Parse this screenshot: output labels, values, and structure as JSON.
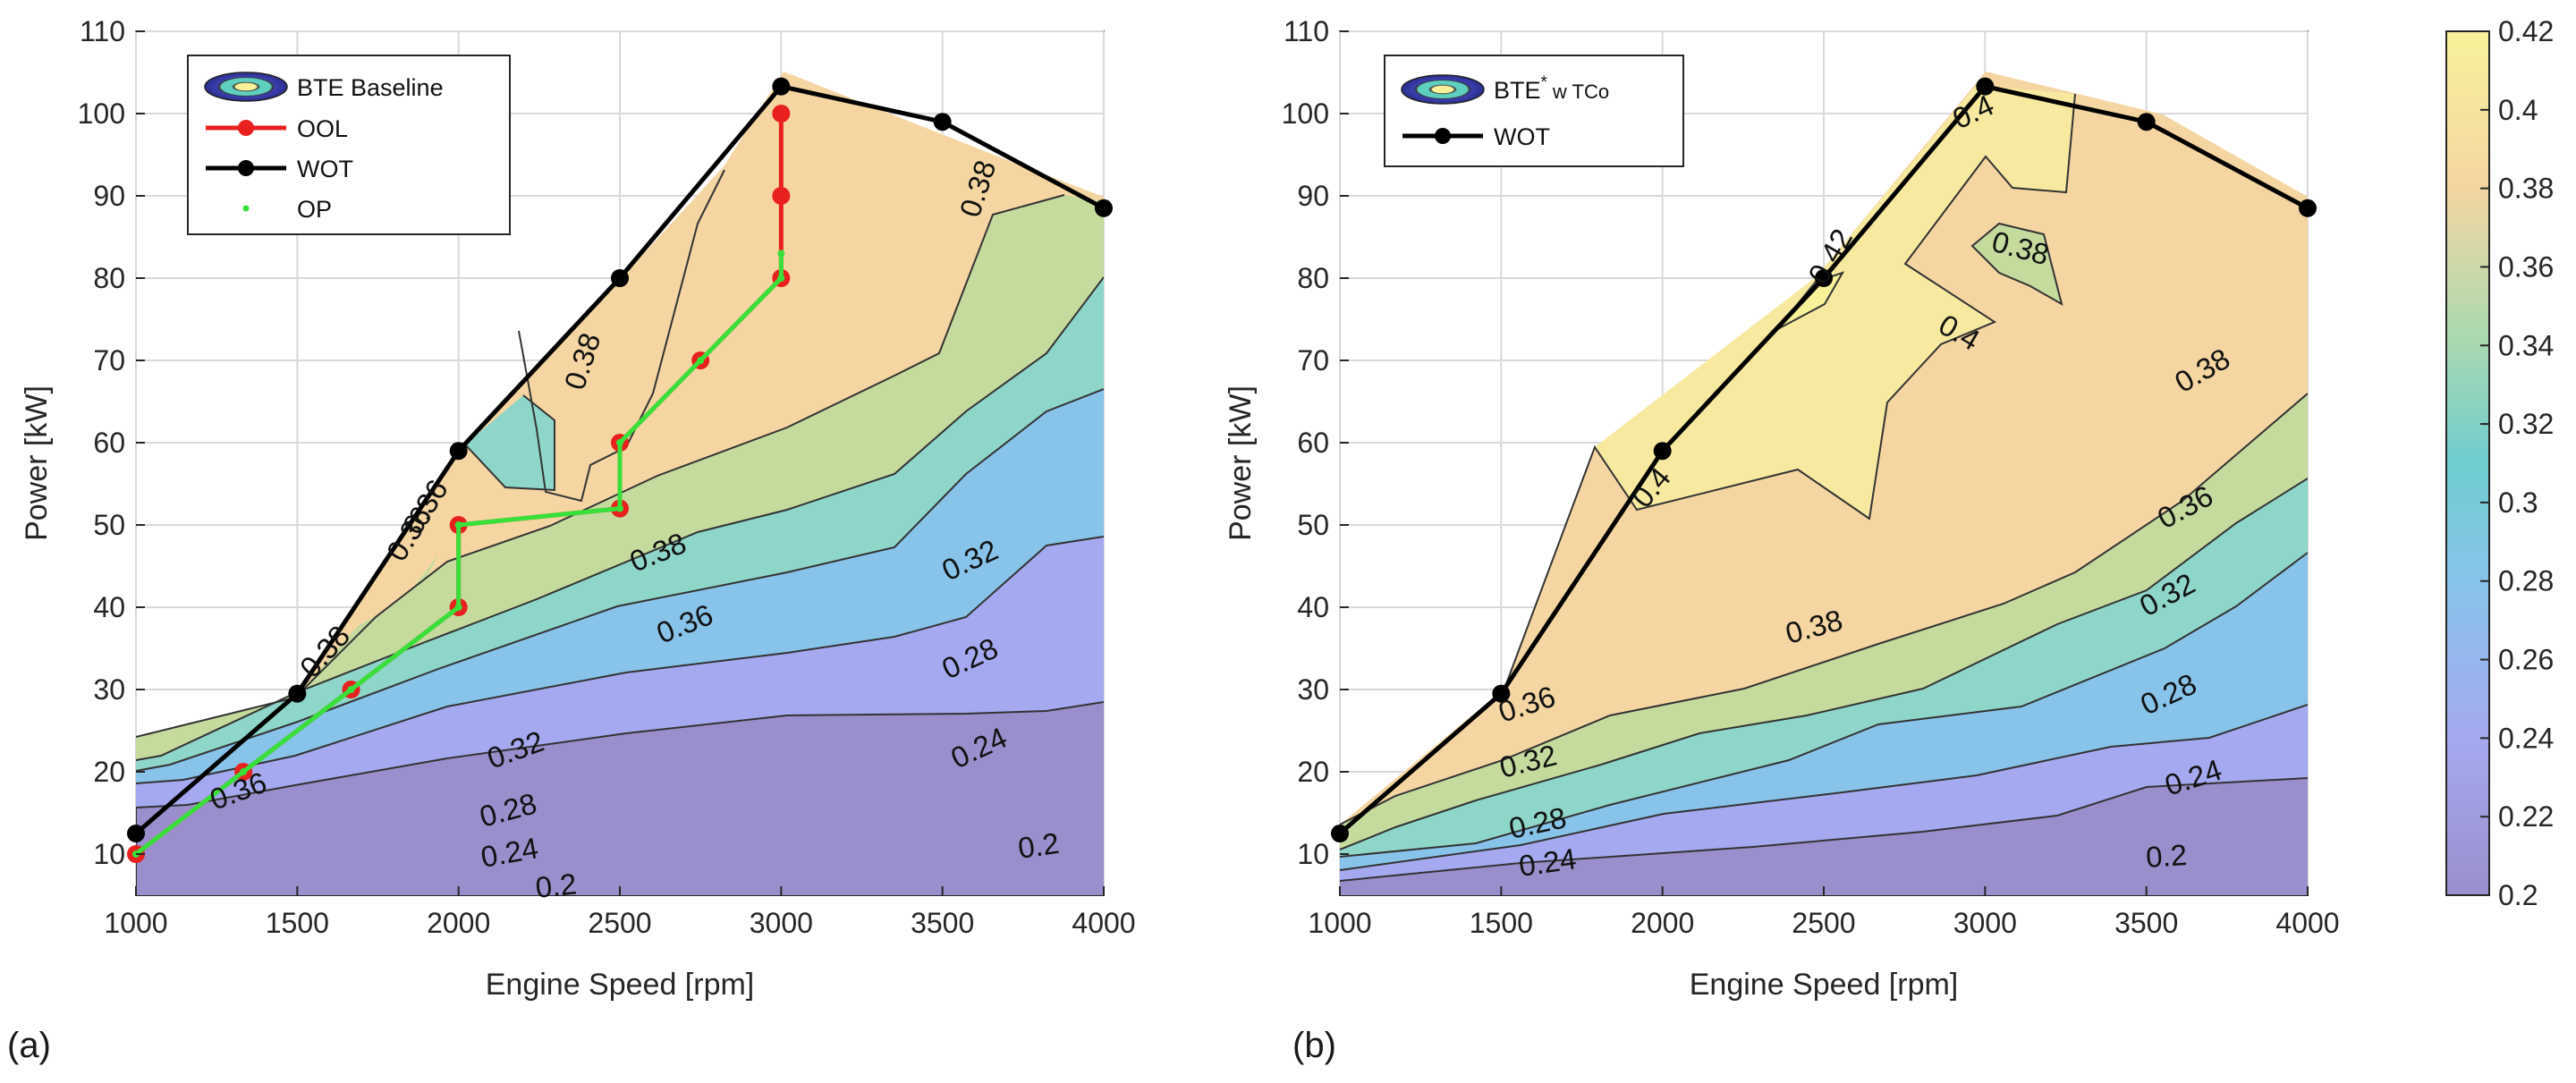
{
  "chart_data": [
    {
      "type": "contour",
      "panel": "(a)",
      "xlabel": "Engine Speed [rpm]",
      "ylabel": "Power [kW]",
      "xlim": [
        1000,
        4000
      ],
      "ylim": [
        5,
        110
      ],
      "xticks": [
        1000,
        1500,
        2000,
        2500,
        3000,
        3500,
        4000
      ],
      "yticks": [
        10,
        20,
        30,
        40,
        50,
        60,
        70,
        80,
        90,
        100,
        110
      ],
      "grid": true,
      "legend_position": "top-left",
      "legend": [
        "BTE Baseline",
        "OOL",
        "WOT",
        "OP"
      ],
      "contour_labels": [
        "0.38",
        "0.38",
        "0.38",
        "0.36",
        "0.36",
        "0.36",
        "0.32",
        "0.32",
        "0.28",
        "0.28",
        "0.24",
        "0.24",
        "0.2",
        "0.2",
        "0.38",
        "0.36"
      ],
      "series": [
        {
          "name": "WOT",
          "x": [
            1000,
            1500,
            2000,
            2500,
            3000,
            3500,
            4000
          ],
          "y": [
            12.5,
            29.5,
            59,
            80,
            103.3,
            99,
            88.5
          ]
        },
        {
          "name": "OOL",
          "x": [
            1000,
            1333,
            1667,
            2000,
            2000,
            2500,
            2500,
            2750,
            3000,
            3000,
            3000
          ],
          "y": [
            10,
            20,
            30,
            40,
            50,
            52,
            60,
            70,
            80,
            90,
            100
          ]
        },
        {
          "name": "OP",
          "x": [
            1000,
            1333,
            1667,
            2000,
            2000,
            2500,
            2500,
            2750,
            3000,
            3000
          ],
          "y": [
            10,
            20,
            30,
            40,
            50,
            52,
            60,
            70,
            80,
            83
          ]
        }
      ]
    },
    {
      "type": "contour",
      "panel": "(b)",
      "xlabel": "Engine Speed [rpm]",
      "ylabel": "Power [kW]",
      "xlim": [
        1000,
        4000
      ],
      "ylim": [
        5,
        110
      ],
      "xticks": [
        1000,
        1500,
        2000,
        2500,
        3000,
        3500,
        4000
      ],
      "yticks": [
        10,
        20,
        30,
        40,
        50,
        60,
        70,
        80,
        90,
        100,
        110
      ],
      "grid": true,
      "legend_position": "top-left",
      "legend": [
        "BTE",
        "*",
        "w TCo",
        "WOT"
      ],
      "contour_labels": [
        "0.4",
        "0.38",
        "0.42",
        "0.4",
        "0.4",
        "0.38",
        "0.36",
        "0.38",
        "0.36",
        "0.32",
        "0.32",
        "0.28",
        "0.28",
        "0.24",
        "0.24",
        "0.2"
      ],
      "series": [
        {
          "name": "WOT",
          "x": [
            1000,
            1500,
            2000,
            2500,
            3000,
            3500,
            4000
          ],
          "y": [
            12.5,
            29.5,
            59,
            80,
            103.3,
            99,
            88.5
          ]
        }
      ]
    }
  ],
  "colorbar": {
    "min": 0.2,
    "max": 0.42,
    "ticks": [
      "0.2",
      "0.22",
      "0.24",
      "0.26",
      "0.28",
      "0.3",
      "0.32",
      "0.34",
      "0.36",
      "0.38",
      "0.4",
      "0.42"
    ]
  },
  "colors": {
    "c020": "#9a8fcc",
    "c024": "#a5a9f0",
    "c028": "#88c3ea",
    "c032": "#8ed6c9",
    "c036": "#c5db9e",
    "c038": "#f5d6a2",
    "c040": "#f7eaa0",
    "wot": "#000000",
    "ool": "#e8201e",
    "op": "#38e03a"
  }
}
